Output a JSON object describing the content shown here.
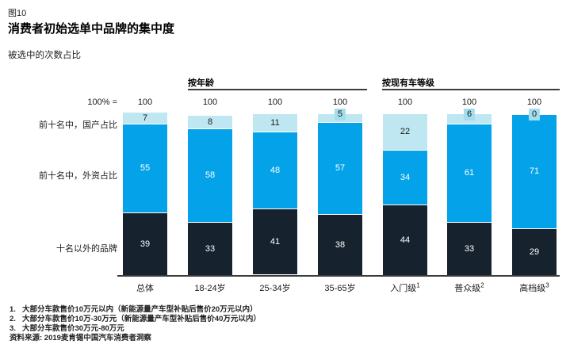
{
  "figure_label": "图10",
  "title": "消费者初始选单中品牌的集中度",
  "subtitle": "被选中的次数占比",
  "chart_data": {
    "type": "bar",
    "stacked": true,
    "ylim": [
      0,
      100
    ],
    "unit_row_label": "100% =",
    "unit_values": [
      "100",
      "100",
      "100",
      "100",
      "100",
      "100",
      "100"
    ],
    "categories": [
      "总体",
      "18-24岁",
      "25-34岁",
      "35-65岁",
      "入门级",
      "普众级",
      "高档级"
    ],
    "category_superscripts": [
      "",
      "",
      "",
      "",
      "1",
      "2",
      "3"
    ],
    "groups": [
      {
        "label": "按年龄",
        "first_bar": 1,
        "last_bar": 3
      },
      {
        "label": "按现有车等级",
        "first_bar": 4,
        "last_bar": 6
      }
    ],
    "series": [
      {
        "name": "前十名中，国产占比",
        "color": "#bfe7f1",
        "badge_color": "#a5ddef",
        "values": [
          7,
          8,
          11,
          5,
          22,
          6,
          0
        ]
      },
      {
        "name": "前十名中，外资占比",
        "color": "#04a2e8",
        "values": [
          55,
          58,
          48,
          57,
          34,
          61,
          71
        ]
      },
      {
        "name": "十名以外的品牌",
        "color": "#16222e",
        "values": [
          39,
          33,
          41,
          38,
          44,
          33,
          29
        ]
      }
    ]
  },
  "footnotes": [
    {
      "num": "1.",
      "text": "大部分车款售价10万元以内（新能源量产车型补贴后售价20万元以内）"
    },
    {
      "num": "2.",
      "text": "大部分车款售价10万-30万元（新能源量产车型补贴后售价40万元以内）"
    },
    {
      "num": "3.",
      "text": "大部分车款售价30万元-80万元"
    }
  ],
  "source": "资料来源: 2019麦肯锡中国汽车消费者洞察"
}
